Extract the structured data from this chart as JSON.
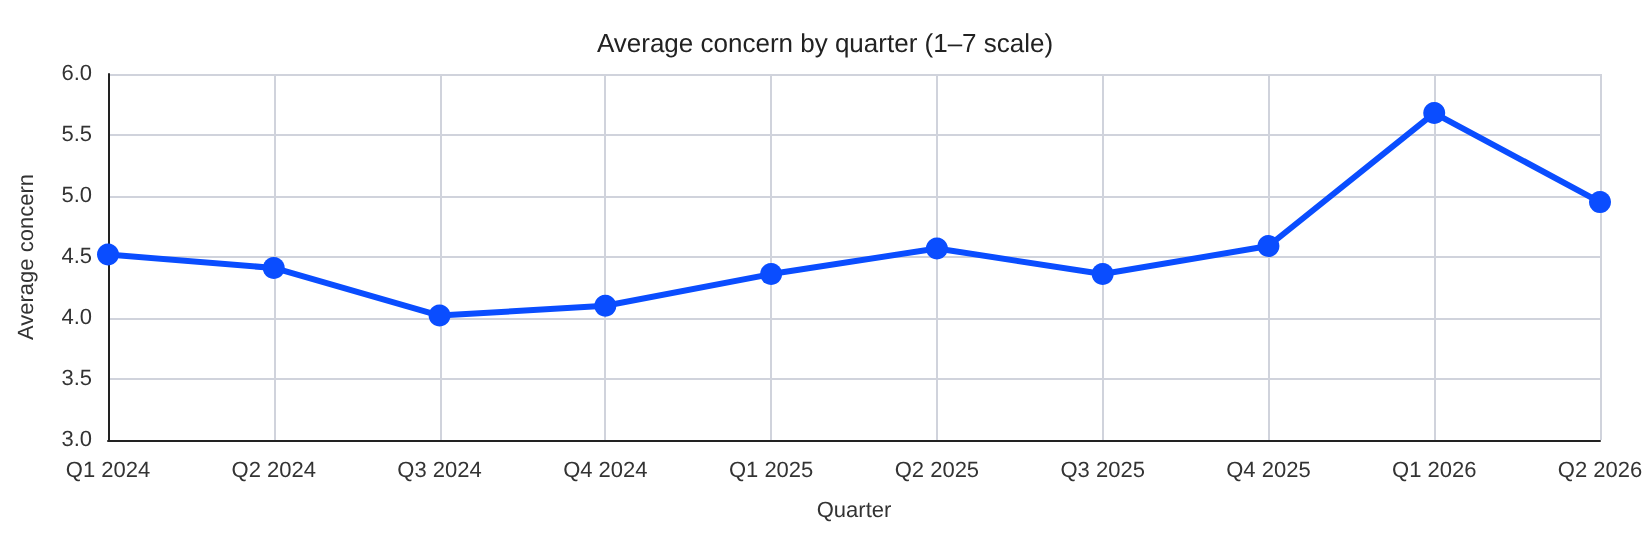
{
  "chart_data": {
    "type": "line",
    "title": "Average concern by quarter (1–7 scale)",
    "xlabel": "Quarter",
    "ylabel": "Average concern",
    "categories": [
      "Q1 2024",
      "Q2 2024",
      "Q3 2024",
      "Q4 2024",
      "Q1 2025",
      "Q2 2025",
      "Q3 2025",
      "Q4 2025",
      "Q1 2026",
      "Q2 2026"
    ],
    "series": [
      {
        "color": "#0a4dff",
        "values": [
          4.52,
          4.41,
          4.02,
          4.1,
          4.36,
          4.57,
          4.36,
          4.59,
          5.68,
          4.95
        ]
      }
    ],
    "ylim": [
      3,
      6
    ],
    "yticks": [
      {
        "value": 3,
        "label": "3.0"
      },
      3.5,
      {
        "value": 4,
        "label": "4.0"
      },
      4.5,
      {
        "value": 5,
        "label": "5.0"
      },
      5.5,
      {
        "value": 6,
        "label": "6.0"
      }
    ],
    "grid": true,
    "marker": "circle",
    "line_style": "solid"
  }
}
